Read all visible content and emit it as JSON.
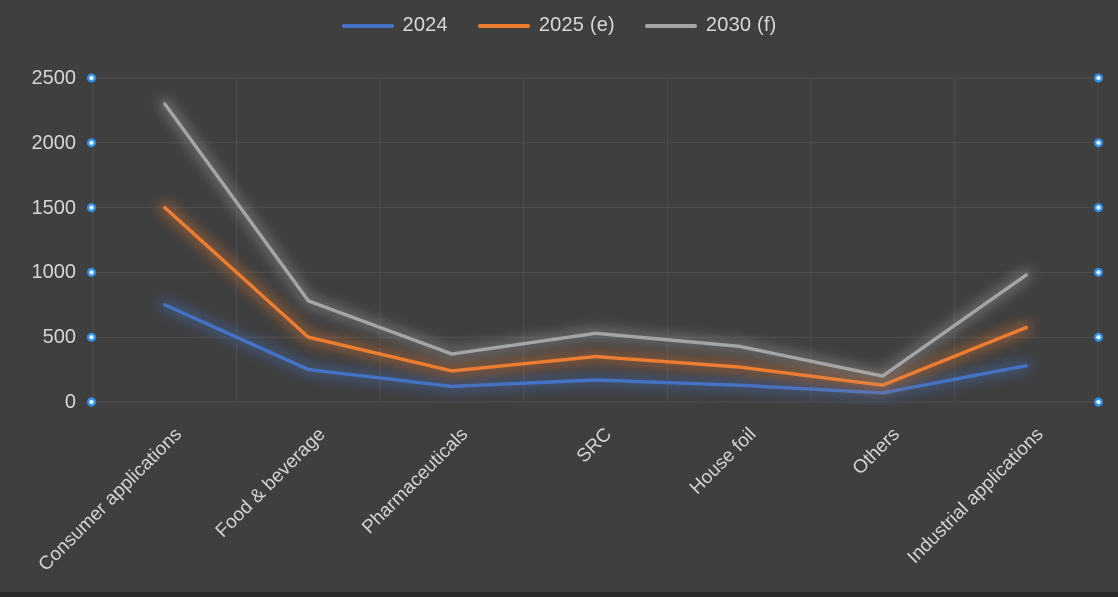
{
  "chart_data": {
    "type": "line",
    "title": "",
    "categories": [
      "Consumer applications",
      "Food & beverage",
      "Pharmaceuticals",
      "SRC",
      "House foil",
      "Others",
      "Industrial applications"
    ],
    "series": [
      {
        "name": "2024",
        "color": "#4472C4",
        "values": [
          750,
          250,
          120,
          170,
          130,
          70,
          280
        ]
      },
      {
        "name": "2025 (e)",
        "color": "#ED7D31",
        "values": [
          1500,
          500,
          240,
          350,
          270,
          130,
          575
        ]
      },
      {
        "name": "2030 (f)",
        "color": "#A5A5A5",
        "values": [
          2300,
          780,
          370,
          530,
          430,
          200,
          980
        ]
      }
    ],
    "ylim": [
      0,
      2500
    ],
    "ytick_interval": 500,
    "yticks": [
      0,
      500,
      1000,
      1500,
      2000,
      2500
    ],
    "grid": true,
    "legend_position": "top",
    "line_style": "glow"
  },
  "colors": {
    "background": "#3F3F3F",
    "gridline": "#4E4E4E",
    "tick_text": "#D6D6D6",
    "legend_text": "#D9D9D9",
    "axis_dot_ring": "#2E8FE8",
    "axis_dot_center": "#E8F4FF",
    "bottom_edge": "#2B2B2B"
  }
}
